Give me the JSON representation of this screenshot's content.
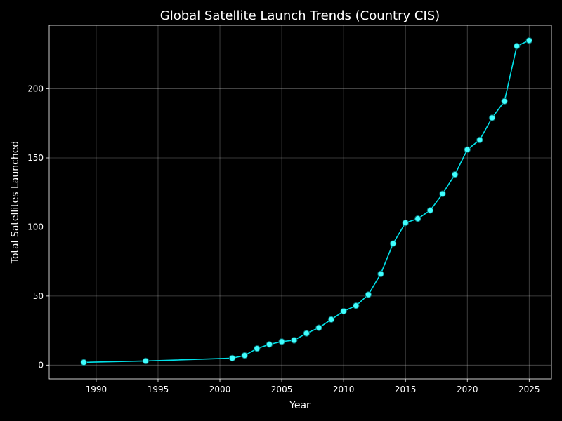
{
  "chart_data": {
    "type": "line",
    "title": "Global Satellite Launch Trends (Country CIS)",
    "xlabel": "Year",
    "ylabel": "Total Satellites Launched",
    "xlim": [
      1986.2,
      2026.8
    ],
    "ylim": [
      -10,
      246
    ],
    "x_ticks": [
      1990,
      1995,
      2000,
      2005,
      2010,
      2015,
      2020,
      2025
    ],
    "y_ticks": [
      0,
      50,
      100,
      150,
      200
    ],
    "grid": true,
    "colors": {
      "background": "#000000",
      "line": "#00e0e8",
      "marker_fill": "#40ffff",
      "marker_edge": "#0a6b70",
      "text": "#ffffff"
    },
    "series": [
      {
        "x": [
          1989,
          1994,
          2001,
          2002,
          2003,
          2004,
          2005,
          2006,
          2007,
          2008,
          2009,
          2010,
          2011,
          2012,
          2013,
          2014,
          2015,
          2016,
          2017,
          2018,
          2019,
          2020,
          2021,
          2022,
          2023,
          2024,
          2025
        ],
        "y": [
          2,
          3,
          5,
          7,
          12,
          15,
          17,
          18,
          23,
          27,
          33,
          39,
          43,
          51,
          66,
          88,
          103,
          106,
          112,
          124,
          138,
          156,
          163,
          179,
          191,
          231,
          235
        ]
      }
    ]
  }
}
